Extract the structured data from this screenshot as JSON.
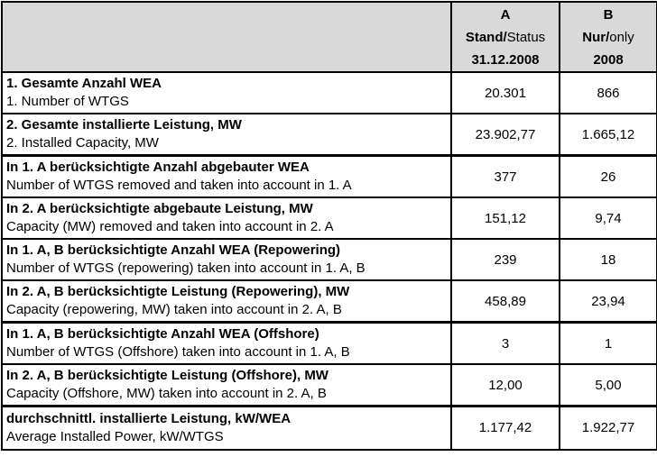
{
  "header": {
    "col_a": {
      "letter": "A",
      "stand_bold": "Stand/",
      "stand_rest": "Status",
      "date": "31.12.2008"
    },
    "col_b": {
      "letter": "B",
      "nur_bold": "Nur/",
      "nur_rest": "only",
      "year": "2008"
    }
  },
  "rows": [
    {
      "de": "1. Gesamte Anzahl WEA",
      "en": "1. Number of WTGS",
      "a": "20.301",
      "b": "866"
    },
    {
      "de": "2. Gesamte installierte Leistung, MW",
      "en": "2. Installed Capacity, MW",
      "a": "23.902,77",
      "b": "1.665,12"
    },
    {
      "de": "In 1. A berücksichtigte Anzahl abgebauter WEA",
      "en": "Number of WTGS removed and taken into account in 1. A",
      "a": "377",
      "b": "26"
    },
    {
      "de": "In 2. A berücksichtigte abgebaute Leistung, MW",
      "en": "Capacity (MW) removed and taken into account in 2. A",
      "a": "151,12",
      "b": "9,74"
    },
    {
      "de": "In 1. A, B berücksichtigte Anzahl WEA (Repowering)",
      "en": "Number of WTGS (repowering) taken into account in 1. A, B",
      "a": "239",
      "b": "18"
    },
    {
      "de": "In 2. A, B berücksichtigte Leistung (Repowering), MW",
      "en": "Capacity (repowering, MW) taken into account in 2. A, B",
      "a": "458,89",
      "b": "23,94"
    },
    {
      "de": "In 1. A, B berücksichtigte Anzahl WEA (Offshore)",
      "en": "Number of WTGS (Offshore) taken into account in 1. A, B",
      "a": "3",
      "b": "1"
    },
    {
      "de": "In 2. A, B berücksichtigte Leistung (Offshore), MW",
      "en": "Capacity (Offshore, MW) taken into account in 2. A, B",
      "a": "12,00",
      "b": "5,00"
    },
    {
      "de": "durchschnittl. installierte Leistung, kW/WEA",
      "en": "Average Installed Power, kW/WTGS",
      "a": "1.177,42",
      "b": "1.922,77"
    }
  ]
}
